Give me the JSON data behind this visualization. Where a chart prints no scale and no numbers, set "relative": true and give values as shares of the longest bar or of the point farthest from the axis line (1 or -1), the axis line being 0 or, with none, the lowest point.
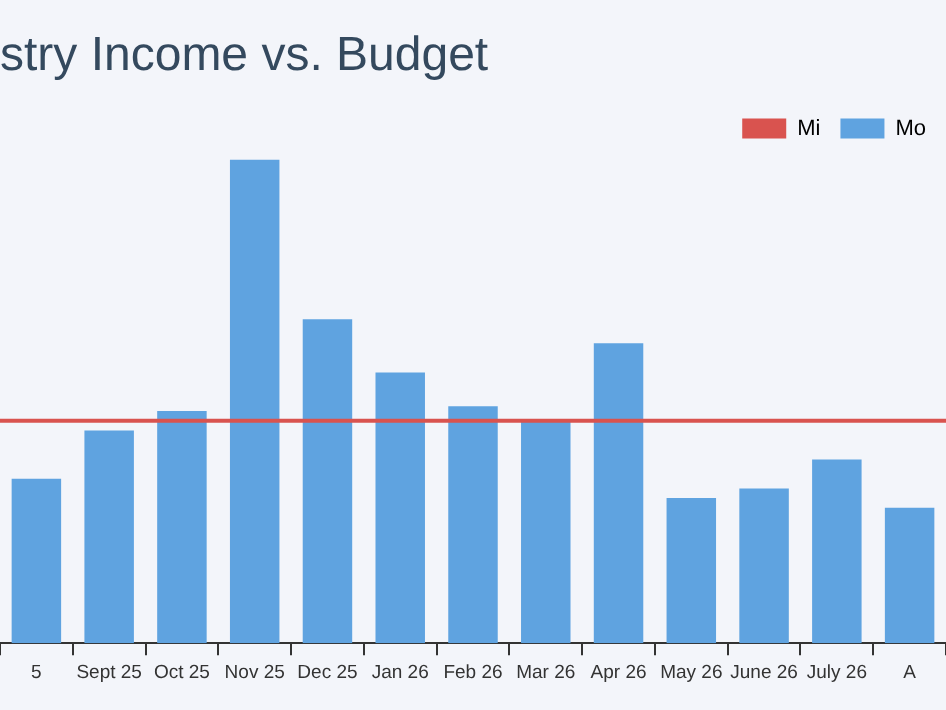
{
  "chart_data": {
    "type": "bar",
    "title": "stry Income vs. Budget",
    "relative": true,
    "categories": [
      "5",
      "Sept 25",
      "Oct 25",
      "Nov 25",
      "Dec 25",
      "Jan 26",
      "Feb 26",
      "Mar 26",
      "Apr 26",
      "May 26",
      "June 26",
      "July 26",
      "A"
    ],
    "series": [
      {
        "name": "Mo",
        "color": "#5fa3e0",
        "values": [
          0.34,
          0.44,
          0.48,
          1,
          0.67,
          0.56,
          0.49,
          0.46,
          0.62,
          0.3,
          0.32,
          0.38,
          0.28
        ]
      }
    ],
    "ref_lines": [
      {
        "axis": "y",
        "value": 0.46,
        "label": "Mi",
        "color": "#d9534f"
      }
    ],
    "legend": "top right",
    "grid": false
  }
}
